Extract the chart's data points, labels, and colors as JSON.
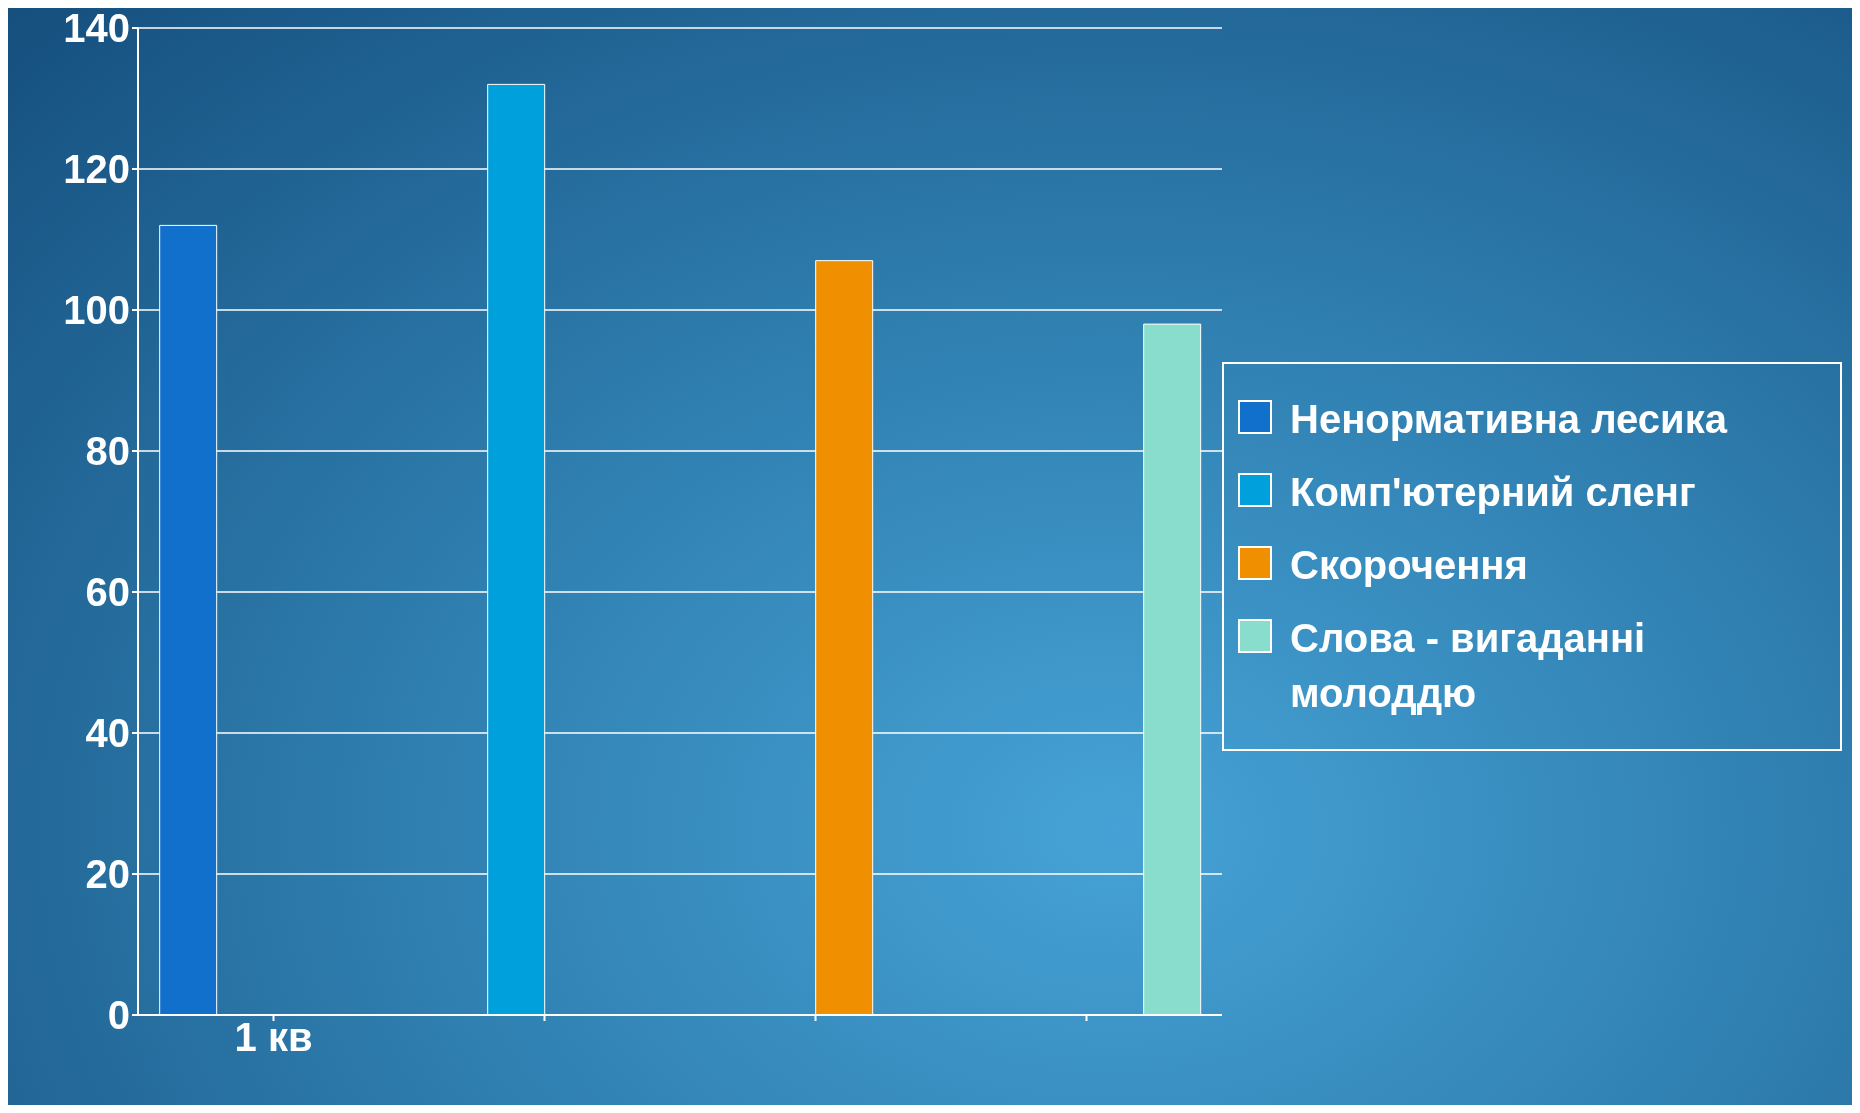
{
  "chart_data": {
    "type": "bar",
    "categories": [
      "1 кв",
      null,
      null,
      null
    ],
    "series": [
      {
        "name": "Ненормативна лесика",
        "color": "#1170cc",
        "values": [
          112,
          0,
          0,
          0
        ]
      },
      {
        "name": "Комп'ютерний сленг",
        "color": "#00a0dc",
        "values": [
          0,
          132,
          0,
          0
        ]
      },
      {
        "name": "Скорочення",
        "color": "#f09000",
        "values": [
          0,
          0,
          107,
          0
        ]
      },
      {
        "name": "Слова - вигаданні молоддю",
        "color": "#88ddcc",
        "values": [
          0,
          0,
          0,
          98
        ]
      }
    ],
    "ylim": [
      0,
      140
    ],
    "yticks": [
      0,
      20,
      40,
      60,
      80,
      100,
      120,
      140
    ],
    "grid": "y",
    "legend": "right"
  }
}
